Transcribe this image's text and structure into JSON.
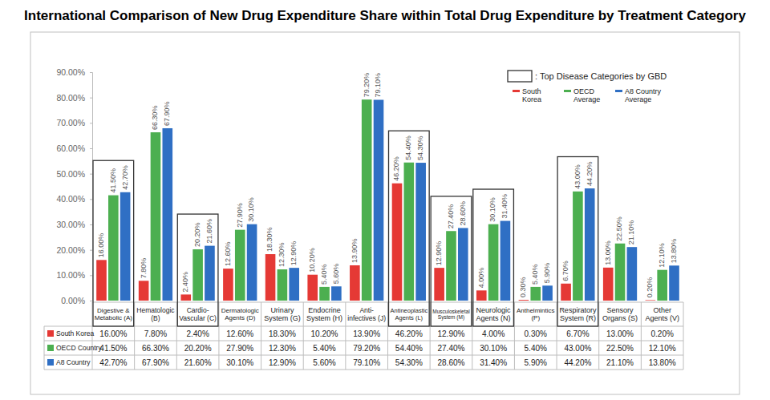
{
  "chart_data": {
    "type": "bar",
    "title": "International Comparison of New Drug Expenditure Share within Total Drug Expenditure by Treatment Category",
    "categories": [
      "Digestive & Metabolic (A)",
      "Hematologic (B)",
      "Cardio-Vascular (C)",
      "Dermatologic Agents (D)",
      "Urinary System (G)",
      "Endocrine System (H)",
      "Anti-infectives (J)",
      "Antineoplastic Agents (L)",
      "Musculoskeletal System (M)",
      "Neurologic Agents (N)",
      "Anthelmintics (P)",
      "Respiratory System (R)",
      "Sensory Organs (S)",
      "Other Agents (V)"
    ],
    "series": [
      {
        "name": "South Korea",
        "table_label": "South Korea",
        "color": "#e53935",
        "values": [
          16.0,
          7.8,
          2.4,
          12.6,
          18.3,
          10.2,
          13.9,
          46.2,
          12.9,
          4.0,
          0.3,
          6.7,
          13.0,
          0.2
        ],
        "value_labels": [
          "16.00%",
          "7.80%",
          "2.40%",
          "12.60%",
          "18.30%",
          "10.20%",
          "13.90%",
          "46.20%",
          "12.90%",
          "4.00%",
          "0.30%",
          "6.70%",
          "13.00%",
          "0.20%"
        ]
      },
      {
        "name": "OECD Average",
        "table_label": "OECD Country",
        "color": "#4caf50",
        "values": [
          41.5,
          66.3,
          20.2,
          27.9,
          12.3,
          5.4,
          79.2,
          54.4,
          27.4,
          30.1,
          5.4,
          43.0,
          22.5,
          12.1
        ],
        "value_labels": [
          "41.50%",
          "66.30%",
          "20.20%",
          "27.90%",
          "12.30%",
          "5.40%",
          "79.20%",
          "54.40%",
          "27.40%",
          "30.10%",
          "5.40%",
          "43.00%",
          "22.50%",
          "12.10%"
        ]
      },
      {
        "name": "A8 Country Average",
        "table_label": "A8 Country",
        "color": "#2f6fc4",
        "values": [
          42.7,
          67.9,
          21.6,
          30.1,
          12.9,
          5.6,
          79.1,
          54.3,
          28.6,
          31.4,
          5.9,
          44.2,
          21.1,
          13.8
        ],
        "value_labels": [
          "42.70%",
          "67.90%",
          "21.60%",
          "30.10%",
          "12.90%",
          "5.60%",
          "79.10%",
          "54.30%",
          "28.60%",
          "31.40%",
          "5.90%",
          "44.20%",
          "21.10%",
          "13.80%"
        ]
      }
    ],
    "highlight": {
      "label": ": Top Disease Categories by GBD",
      "categories": [
        "Digestive & Metabolic (A)",
        "Cardio-Vascular (C)",
        "Antineoplastic Agents (L)",
        "Musculoskeletal System (M)",
        "Neurologic Agents (N)",
        "Respiratory System (R)"
      ]
    },
    "ylim": [
      0,
      90
    ],
    "yticks": [
      {
        "value": 0,
        "label": "0.00%"
      },
      {
        "value": 10,
        "label": "10.00%"
      },
      {
        "value": 20,
        "label": "20.00%"
      },
      {
        "value": 30,
        "label": "30.00%"
      },
      {
        "value": 40,
        "label": "40.00%"
      },
      {
        "value": 50,
        "label": "50.00%"
      },
      {
        "value": 60,
        "label": "60.00%"
      },
      {
        "value": 70,
        "label": "70.00%"
      },
      {
        "value": 80,
        "label": "80.00%"
      },
      {
        "value": 90,
        "label": "90.00%"
      }
    ],
    "grid": false,
    "legend": "top-right",
    "data_labels": true
  }
}
